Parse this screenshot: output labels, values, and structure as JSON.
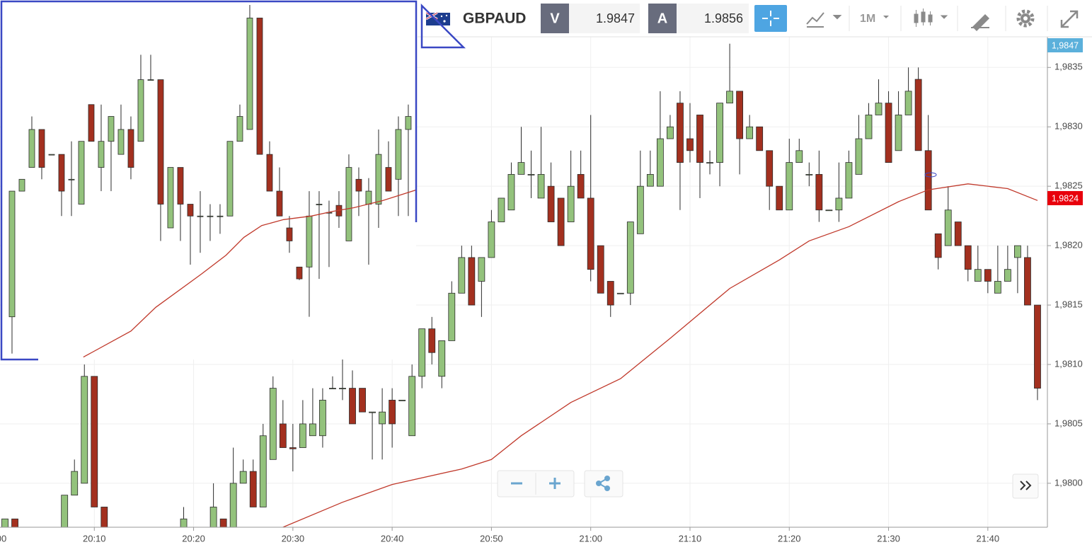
{
  "toolbar": {
    "symbol": "GBPAUD",
    "bid_label": "V",
    "bid": 1.9847,
    "ask_label": "A",
    "ask": 1.9856,
    "timeframe": "1M"
  },
  "chart_data": [
    {
      "type": "candlestick",
      "up_color": "#93c27c",
      "down_color": "#a3301f",
      "xlim": [
        1200.5,
        1306
      ],
      "ylim": [
        1.97963,
        1.98374
      ],
      "xticks": [
        {
          "value": 1200,
          "label": "20:00"
        },
        {
          "value": 1210,
          "label": "20:10"
        },
        {
          "value": 1220,
          "label": "20:20"
        },
        {
          "value": 1230,
          "label": "20:30"
        },
        {
          "value": 1240,
          "label": "20:40"
        },
        {
          "value": 1250,
          "label": "20:50"
        },
        {
          "value": 1260,
          "label": "21:00"
        },
        {
          "value": 1270,
          "label": "21:10"
        },
        {
          "value": 1280,
          "label": "21:20"
        },
        {
          "value": 1290,
          "label": "21:30"
        },
        {
          "value": 1300,
          "label": "21:40"
        }
      ],
      "yticks": [
        {
          "value": 1.98,
          "label": "1,9800"
        },
        {
          "value": 1.9805,
          "label": "1,9805"
        },
        {
          "value": 1.981,
          "label": "1,9810"
        },
        {
          "value": 1.9815,
          "label": "1,9815"
        },
        {
          "value": 1.982,
          "label": "1,9820"
        },
        {
          "value": 1.9825,
          "label": "1,9825"
        },
        {
          "value": 1.983,
          "label": "1,9830"
        },
        {
          "value": 1.9835,
          "label": "1,9835"
        }
      ],
      "grid": true,
      "price_tags": [
        {
          "value": 1.9847,
          "label": "1,9847",
          "color": "#5bb0db"
        },
        {
          "value": 1.9824,
          "label": "1,9824",
          "color": "#e8000c"
        }
      ],
      "x": [
        1201,
        1202,
        1207,
        1208,
        1209,
        1210,
        1211,
        1219,
        1222,
        1223,
        1224,
        1225,
        1226,
        1227,
        1228,
        1229,
        1230,
        1231,
        1232,
        1233,
        1234,
        1235,
        1236,
        1237,
        1238,
        1239,
        1240,
        1241,
        1242,
        1243,
        1244,
        1245,
        1246,
        1247,
        1248,
        1249,
        1250,
        1251,
        1252,
        1253,
        1254,
        1255,
        1256,
        1257,
        1258,
        1259,
        1260,
        1261,
        1262,
        1263,
        1264,
        1265,
        1266,
        1267,
        1268,
        1269,
        1270,
        1271,
        1272,
        1273,
        1274,
        1275,
        1276,
        1277,
        1278,
        1279,
        1280,
        1281,
        1282,
        1283,
        1284,
        1285,
        1286,
        1287,
        1288,
        1289,
        1290,
        1291,
        1292,
        1293,
        1294,
        1295,
        1296,
        1297,
        1298,
        1299,
        1300,
        1301,
        1302,
        1303,
        1304,
        1305
      ],
      "open": [
        1.97955,
        1.9797,
        1.97955,
        1.9799,
        1.98,
        1.9809,
        1.9798,
        1.97955,
        1.97955,
        1.9797,
        1.97955,
        1.98,
        1.9801,
        1.9798,
        1.9802,
        1.9805,
        1.9803,
        1.9803,
        1.9804,
        1.9804,
        1.9808,
        1.9808,
        1.9808,
        1.9808,
        1.9806,
        1.9805,
        1.9807,
        1.9807,
        1.9804,
        1.9809,
        1.9813,
        1.9809,
        1.9812,
        1.9816,
        1.9819,
        1.9817,
        1.9819,
        1.9822,
        1.9823,
        1.9826,
        1.9826,
        1.9824,
        1.9825,
        1.9824,
        1.9822,
        1.9826,
        1.9824,
        1.982,
        1.9817,
        1.9816,
        1.9816,
        1.9821,
        1.9825,
        1.9825,
        1.9829,
        1.9832,
        1.9829,
        1.9831,
        1.9827,
        1.9827,
        1.9832,
        1.9833,
        1.9829,
        1.983,
        1.9828,
        1.9825,
        1.9823,
        1.9827,
        1.9826,
        1.9826,
        1.9823,
        1.9823,
        1.9824,
        1.9826,
        1.9829,
        1.9831,
        1.9832,
        1.9828,
        1.9831,
        1.9834,
        1.9828,
        1.9821,
        1.982,
        1.9822,
        1.982,
        1.9817,
        1.9818,
        1.9816,
        1.9817,
        1.9819,
        1.9819,
        1.9815
      ],
      "high": [
        1.9797,
        1.9797,
        1.9799,
        1.9802,
        1.981,
        1.9809,
        1.9798,
        1.9798,
        1.98,
        1.9797,
        1.9803,
        1.9802,
        1.9802,
        1.9805,
        1.9809,
        1.9807,
        1.9805,
        1.9807,
        1.9808,
        1.9808,
        1.9809,
        1.9811,
        1.98095,
        1.9808,
        1.9806,
        1.9808,
        1.9808,
        1.9807,
        1.981,
        1.9813,
        1.9814,
        1.9812,
        1.9817,
        1.982,
        1.982,
        1.9819,
        1.9823,
        1.9824,
        1.9827,
        1.983,
        1.9828,
        1.983,
        1.9827,
        1.9824,
        1.9828,
        1.9828,
        1.9831,
        1.982,
        1.9817,
        1.9816,
        1.9822,
        1.9828,
        1.9828,
        1.9833,
        1.9831,
        1.9833,
        1.9832,
        1.9831,
        1.9828,
        1.9832,
        1.9837,
        1.9833,
        1.9831,
        1.983,
        1.9828,
        1.9825,
        1.9829,
        1.9829,
        1.9827,
        1.9828,
        1.9823,
        1.9827,
        1.9828,
        1.9831,
        1.9832,
        1.9834,
        1.9833,
        1.9833,
        1.9835,
        1.9835,
        1.9831,
        1.9821,
        1.9825,
        1.9822,
        1.982,
        1.982,
        1.9818,
        1.982,
        1.982,
        1.982,
        1.982,
        1.9815
      ],
      "low": [
        1.97955,
        1.97955,
        1.97955,
        1.9799,
        1.98,
        1.9798,
        1.97955,
        1.97955,
        1.97955,
        1.97955,
        1.97955,
        1.98,
        1.9798,
        1.9798,
        1.9802,
        1.9803,
        1.9801,
        1.9803,
        1.9804,
        1.9803,
        1.9808,
        1.9807,
        1.9805,
        1.9806,
        1.9802,
        1.9802,
        1.9803,
        1.9807,
        1.9804,
        1.9808,
        1.981,
        1.9808,
        1.9812,
        1.9816,
        1.9815,
        1.9814,
        1.9819,
        1.9822,
        1.9823,
        1.9826,
        1.9824,
        1.9824,
        1.9822,
        1.982,
        1.9822,
        1.9824,
        1.9817,
        1.9816,
        1.9814,
        1.9816,
        1.9815,
        1.9821,
        1.9825,
        1.9825,
        1.9829,
        1.9823,
        1.9827,
        1.9824,
        1.9826,
        1.9825,
        1.9832,
        1.9826,
        1.9829,
        1.9828,
        1.9823,
        1.9823,
        1.9823,
        1.9827,
        1.9825,
        1.9822,
        1.9823,
        1.9822,
        1.9824,
        1.9826,
        1.9829,
        1.9831,
        1.9827,
        1.9828,
        1.9831,
        1.9828,
        1.9823,
        1.9818,
        1.982,
        1.982,
        1.9817,
        1.9817,
        1.9816,
        1.9816,
        1.9817,
        1.9816,
        1.9815,
        1.9807
      ],
      "close": [
        1.9797,
        1.97955,
        1.9799,
        1.9801,
        1.9809,
        1.9798,
        1.97955,
        1.9797,
        1.9798,
        1.97955,
        1.98,
        1.9801,
        1.9798,
        1.9804,
        1.9808,
        1.9803,
        1.98029,
        1.9805,
        1.9805,
        1.9807,
        1.9808,
        1.9808,
        1.9805,
        1.9806,
        1.9806,
        1.9806,
        1.9805,
        1.9807,
        1.9809,
        1.9813,
        1.9811,
        1.9812,
        1.9816,
        1.9819,
        1.9815,
        1.9819,
        1.9822,
        1.9824,
        1.9826,
        1.9827,
        1.9826,
        1.9826,
        1.9822,
        1.982,
        1.9825,
        1.9824,
        1.9818,
        1.9816,
        1.9815,
        1.9816,
        1.9822,
        1.9825,
        1.9826,
        1.9829,
        1.983,
        1.9827,
        1.9828,
        1.9827,
        1.9827,
        1.9832,
        1.9833,
        1.9829,
        1.983,
        1.9828,
        1.9825,
        1.9823,
        1.9827,
        1.9828,
        1.9826,
        1.9823,
        1.9823,
        1.9824,
        1.9827,
        1.9829,
        1.9831,
        1.9832,
        1.9827,
        1.9831,
        1.9833,
        1.9828,
        1.9823,
        1.9819,
        1.9823,
        1.982,
        1.9818,
        1.9818,
        1.9817,
        1.9817,
        1.9818,
        1.982,
        1.9815,
        1.9808
      ],
      "ma": {
        "color": "#c0392b",
        "x": [
          1229,
          1235,
          1240,
          1247,
          1250,
          1253,
          1258,
          1263,
          1268,
          1274,
          1279,
          1282,
          1286,
          1291,
          1294,
          1298,
          1302,
          1305
        ],
        "values": [
          1.97963,
          1.97984,
          1.97999,
          1.98012,
          1.9802,
          1.9804,
          1.98068,
          1.98088,
          1.98122,
          1.98164,
          1.98188,
          1.98204,
          1.98216,
          1.98237,
          1.98247,
          1.98252,
          1.98248,
          1.98238
        ]
      }
    },
    {
      "type": "candlestick",
      "up_color": "#93c27c",
      "down_color": "#a3301f",
      "border_color": "#3a48c4",
      "xlim": [
        -1.07,
        40.79
      ],
      "ylim": [
        1.98104,
        1.98406
      ],
      "x": [
        0,
        1,
        2,
        3,
        4,
        5,
        6,
        7,
        8,
        9,
        10,
        11,
        12,
        13,
        14,
        15,
        16,
        17,
        18,
        19,
        20,
        21,
        22,
        23,
        24,
        25,
        26,
        27,
        28,
        29,
        30,
        31,
        32,
        33,
        34,
        35,
        36,
        37,
        38,
        39,
        40
      ],
      "open": [
        1.9814,
        1.98246,
        1.98266,
        1.98298,
        1.98277,
        1.98277,
        1.98256,
        1.98235,
        1.98319,
        1.98266,
        1.98288,
        1.98277,
        1.98298,
        1.98288,
        1.9834,
        1.9834,
        1.98215,
        1.98266,
        1.98235,
        1.98225,
        1.98225,
        1.98225,
        1.98225,
        1.98288,
        1.98298,
        1.98392,
        1.98277,
        1.98246,
        1.98215,
        1.98182,
        1.98182,
        1.98235,
        1.98228,
        1.98234,
        1.98204,
        1.98256,
        1.98235,
        1.98235,
        1.98266,
        1.98256,
        1.98298
      ],
      "high": [
        1.98246,
        1.98256,
        1.98309,
        1.98298,
        1.98277,
        1.98277,
        1.98288,
        1.98288,
        1.98319,
        1.98319,
        1.98309,
        1.98319,
        1.98309,
        1.98361,
        1.98361,
        1.9834,
        1.98266,
        1.98266,
        1.98235,
        1.98246,
        1.98235,
        1.98235,
        1.98288,
        1.98319,
        1.98403,
        1.98392,
        1.98288,
        1.98266,
        1.98225,
        1.98182,
        1.98246,
        1.98246,
        1.98238,
        1.98246,
        1.98277,
        1.98266,
        1.98257,
        1.98298,
        1.98288,
        1.98309,
        1.98319
      ],
      "low": [
        1.98109,
        1.98246,
        1.98266,
        1.98256,
        1.98277,
        1.98225,
        1.98225,
        1.98235,
        1.98288,
        1.98246,
        1.98246,
        1.98277,
        1.98256,
        1.98288,
        1.9834,
        1.98204,
        1.98215,
        1.98204,
        1.98184,
        1.98194,
        1.98204,
        1.9821,
        1.98225,
        1.98288,
        1.98298,
        1.98277,
        1.98246,
        1.98225,
        1.98194,
        1.98171,
        1.9814,
        1.98172,
        1.98182,
        1.98215,
        1.98204,
        1.98225,
        1.98184,
        1.98215,
        1.98246,
        1.98225,
        1.98225
      ],
      "close": [
        1.98246,
        1.98256,
        1.98298,
        1.98266,
        1.98277,
        1.98246,
        1.98256,
        1.98288,
        1.98288,
        1.98288,
        1.98309,
        1.98298,
        1.98266,
        1.9834,
        1.9834,
        1.98235,
        1.98266,
        1.98235,
        1.98225,
        1.98225,
        1.98225,
        1.98225,
        1.98288,
        1.98309,
        1.98392,
        1.98277,
        1.98246,
        1.98225,
        1.98204,
        1.98172,
        1.98225,
        1.98235,
        1.98228,
        1.98225,
        1.98266,
        1.98246,
        1.98246,
        1.98277,
        1.98246,
        1.98298,
        1.98309
      ],
      "ma": {
        "color": "#c0392b",
        "x": [
          7.2,
          12,
          14.5,
          19.1,
          21.6,
          23.4,
          25.2,
          27.4,
          30.2,
          32.4,
          34.5,
          37.4,
          40.8
        ],
        "values": [
          1.98106,
          1.98128,
          1.98148,
          1.98176,
          1.98192,
          1.98207,
          1.98217,
          1.98222,
          1.98225,
          1.98229,
          1.98232,
          1.98238,
          1.98247
        ]
      }
    }
  ]
}
